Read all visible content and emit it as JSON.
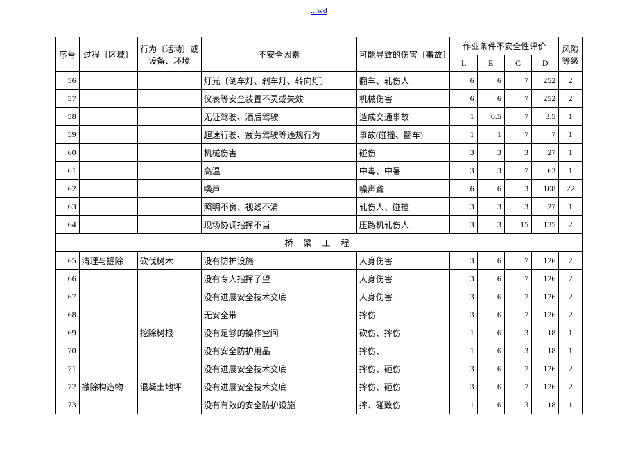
{
  "header": {
    "link_text": "...wd"
  },
  "table": {
    "headers": {
      "seq": "序号",
      "process": "过程〔区域〕",
      "activity": "行为〔活动〕或设备、环境",
      "factor": "不安全因素",
      "harm": "可能导致的伤害〔事故〕",
      "eval_group": "作业条件不安全性评价",
      "L": "L",
      "E": "E",
      "C": "C",
      "D": "D",
      "risk": "风险等级"
    },
    "rows1": [
      {
        "seq": "56",
        "process": "",
        "activity": "",
        "factor": "灯光〔倒车灯、刹车灯、转向灯〕",
        "harm": "翻车、轧伤人",
        "L": "6",
        "E": "6",
        "C": "7",
        "D": "252",
        "risk": "2"
      },
      {
        "seq": "57",
        "process": "",
        "activity": "",
        "factor": "仪表等安全装置不灵或失效",
        "harm": "机械伤害",
        "L": "6",
        "E": "6",
        "C": "7",
        "D": "252",
        "risk": "2"
      },
      {
        "seq": "58",
        "process": "",
        "activity": "",
        "factor": "无证驾驶、酒后驾驶",
        "harm": "造成交通事故",
        "L": "1",
        "E": "0.5",
        "C": "7",
        "D": "3.5",
        "risk": "1"
      },
      {
        "seq": "59",
        "process": "",
        "activity": "",
        "factor": "超速行驶、疲劳驾驶等违规行为",
        "harm": "事故(碰撞、翻车)",
        "L": "1",
        "E": "1",
        "C": "7",
        "D": "7",
        "risk": "1"
      },
      {
        "seq": "60",
        "process": "",
        "activity": "",
        "factor": "机械伤害",
        "harm": "碰伤",
        "L": "3",
        "E": "3",
        "C": "3",
        "D": "27",
        "risk": "1"
      },
      {
        "seq": "61",
        "process": "",
        "activity": "",
        "factor": "高温",
        "harm": "中毒、中暑",
        "L": "3",
        "E": "3",
        "C": "7",
        "D": "63",
        "risk": "1"
      },
      {
        "seq": "62",
        "process": "",
        "activity": "",
        "factor": "噪声",
        "harm": "噪声聋",
        "L": "6",
        "E": "6",
        "C": "3",
        "D": "108",
        "risk": "22"
      },
      {
        "seq": "63",
        "process": "",
        "activity": "",
        "factor": "照明不良、视线不清",
        "harm": "轧伤人、碰撞",
        "L": "3",
        "E": "3",
        "C": "3",
        "D": "27",
        "risk": "1"
      },
      {
        "seq": "64",
        "process": "",
        "activity": "",
        "factor": "现场协调指挥不当",
        "harm": "压路机轧伤人",
        "L": "3",
        "E": "3",
        "C": "15",
        "D": "135",
        "risk": "2"
      }
    ],
    "section_title": "桥 梁 工 程",
    "rows2": [
      {
        "seq": "65",
        "process": "清理与掘除",
        "activity": "砍伐树木",
        "factor": "没有防护设施",
        "harm": "人身伤害",
        "L": "3",
        "E": "6",
        "C": "7",
        "D": "126",
        "risk": "2"
      },
      {
        "seq": "66",
        "process": "",
        "activity": "",
        "factor": "没有专人指挥了望",
        "harm": "人身伤害",
        "L": "3",
        "E": "6",
        "C": "7",
        "D": "126",
        "risk": "2"
      },
      {
        "seq": "67",
        "process": "",
        "activity": "",
        "factor": "没有进展安全技术交底",
        "harm": "人身伤害",
        "L": "3",
        "E": "6",
        "C": "7",
        "D": "126",
        "risk": "2"
      },
      {
        "seq": "68",
        "process": "",
        "activity": "",
        "factor": "无安全带",
        "harm": "摔伤",
        "L": "3",
        "E": "6",
        "C": "7",
        "D": "126",
        "risk": "2"
      },
      {
        "seq": "69",
        "process": "",
        "activity": "挖除树根",
        "factor": "没有足够的操作空间",
        "harm": "砍伤、摔伤",
        "L": "1",
        "E": "6",
        "C": "3",
        "D": "18",
        "risk": "1"
      },
      {
        "seq": "70",
        "process": "",
        "activity": "",
        "factor": "没有安全防护用品",
        "harm": "摔伤、",
        "L": "1",
        "E": "6",
        "C": "3",
        "D": "18",
        "risk": "1"
      },
      {
        "seq": "71",
        "process": "",
        "activity": "",
        "factor": "没有进展安全技术交底",
        "harm": "摔伤、砸伤",
        "L": "3",
        "E": "6",
        "C": "7",
        "D": "126",
        "risk": "2"
      },
      {
        "seq": "72",
        "process": "撤除构造物",
        "activity": "混凝土地坪",
        "factor": "没有进展安全技术交底",
        "harm": "摔伤、砸伤",
        "L": "3",
        "E": "6",
        "C": "7",
        "D": "126",
        "risk": "2"
      },
      {
        "seq": "73",
        "process": "",
        "activity": "",
        "factor": "没有有效的安全防护设施",
        "harm": "摔、碰致伤",
        "L": "1",
        "E": "6",
        "C": "3",
        "D": "18",
        "risk": "1"
      }
    ]
  }
}
